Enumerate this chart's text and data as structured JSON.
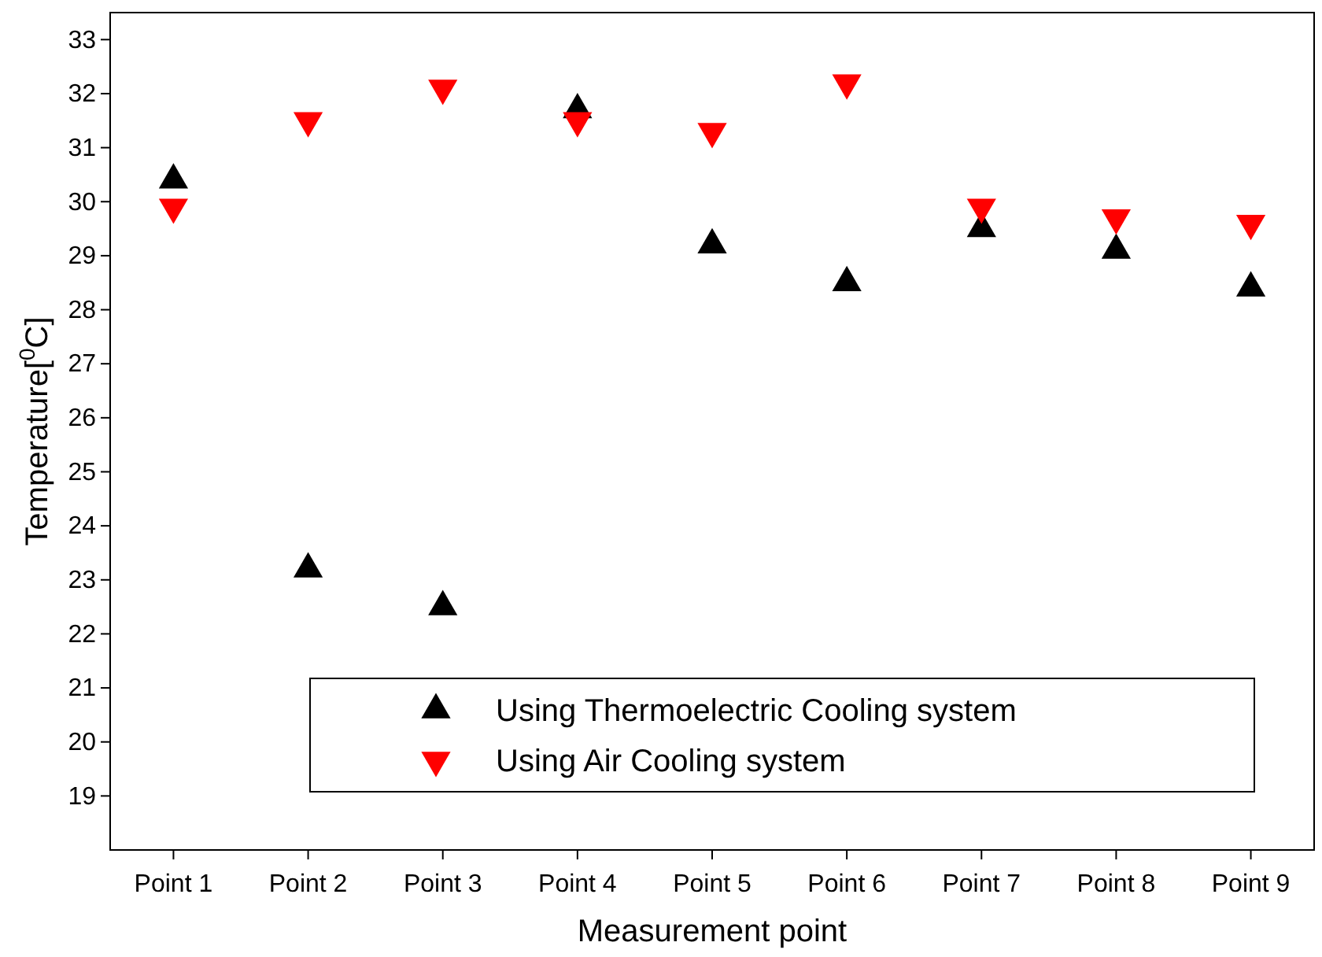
{
  "chart_data": {
    "type": "scatter",
    "xlabel": "Measurement point",
    "ylabel": "Temperature[$^{0}$C]",
    "categories": [
      "Point 1",
      "Point 2",
      "Point 3",
      "Point 4",
      "Point 5",
      "Point 6",
      "Point 7",
      "Point 8",
      "Point 9"
    ],
    "ylim": [
      18,
      33.5
    ],
    "yticks": [
      19,
      20,
      21,
      22,
      23,
      24,
      25,
      26,
      27,
      28,
      29,
      30,
      31,
      32,
      33
    ],
    "grid": false,
    "legend": "bottom right",
    "series": [
      {
        "name": "Using Thermoelectric Cooling system",
        "color": "#000000",
        "marker": "triangle",
        "values": [
          30.4,
          23.2,
          22.5,
          31.7,
          29.2,
          28.5,
          29.5,
          29.1,
          28.4
        ]
      },
      {
        "name": "Using Air Cooling system",
        "color": "#ff0000",
        "marker": "triangle-down",
        "values": [
          29.9,
          31.5,
          32.1,
          31.5,
          31.3,
          32.2,
          29.9,
          29.7,
          29.6
        ]
      }
    ]
  }
}
